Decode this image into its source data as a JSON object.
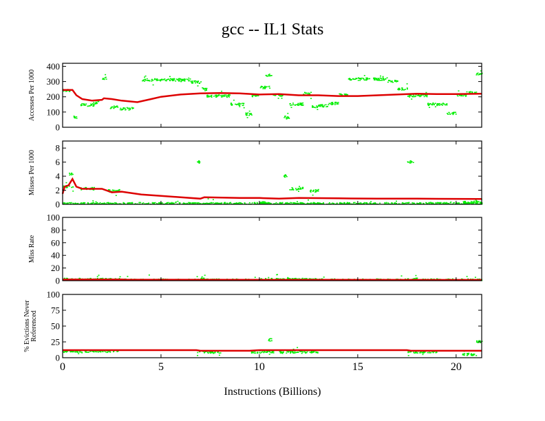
{
  "title": "gcc -- IL1  Stats",
  "colors": {
    "running_avg": "#dd0000",
    "samples": "#00ee00",
    "axis": "#000000"
  },
  "chart_data": [
    {
      "type": "scatter",
      "ylabel": [
        "Accesses Per 1000"
      ],
      "xlim": [
        0,
        21.3
      ],
      "ylim": [
        0,
        420
      ],
      "yticks": [
        0,
        100,
        200,
        300,
        400
      ],
      "series": [
        {
          "name": "running average",
          "kind": "line",
          "points": [
            [
              0,
              245
            ],
            [
              0.5,
              245
            ],
            [
              0.7,
              210
            ],
            [
              1,
              185
            ],
            [
              1.5,
              175
            ],
            [
              2,
              180
            ],
            [
              2.1,
              190
            ],
            [
              2.5,
              185
            ],
            [
              3,
              175
            ],
            [
              3.8,
              165
            ],
            [
              4.5,
              185
            ],
            [
              5,
              200
            ],
            [
              6,
              215
            ],
            [
              7,
              222
            ],
            [
              8,
              225
            ],
            [
              9,
              222
            ],
            [
              10,
              215
            ],
            [
              11,
              218
            ],
            [
              12,
              210
            ],
            [
              13,
              210
            ],
            [
              14,
              205
            ],
            [
              15,
              205
            ],
            [
              16,
              210
            ],
            [
              17,
              215
            ],
            [
              18,
              220
            ],
            [
              19,
              218
            ],
            [
              20,
              218
            ],
            [
              21.3,
              220
            ]
          ]
        },
        {
          "name": "samples",
          "kind": "scatter",
          "clusters": [
            [
              0,
              0.4,
              240
            ],
            [
              0.5,
              0.7,
              65
            ],
            [
              0.9,
              1.6,
              145
            ],
            [
              1.5,
              1.8,
              160
            ],
            [
              2.0,
              2.2,
              320
            ],
            [
              2.4,
              2.8,
              130
            ],
            [
              2.9,
              3.6,
              120
            ],
            [
              4,
              6.5,
              310
            ],
            [
              6.5,
              7,
              295
            ],
            [
              7,
              7.3,
              250
            ],
            [
              7.3,
              8.5,
              205
            ],
            [
              8.5,
              9.2,
              150
            ],
            [
              9.2,
              9.6,
              85
            ],
            [
              9.6,
              10,
              205
            ],
            [
              10,
              10.5,
              260
            ],
            [
              10.3,
              10.6,
              340
            ],
            [
              10.6,
              11.2,
              210
            ],
            [
              11.2,
              11.5,
              65
            ],
            [
              11.5,
              12.2,
              150
            ],
            [
              12.2,
              12.6,
              220
            ],
            [
              12.6,
              13,
              135
            ],
            [
              13,
              13.5,
              140
            ],
            [
              13.5,
              14,
              155
            ],
            [
              14,
              14.5,
              210
            ],
            [
              14.5,
              16.5,
              315
            ],
            [
              16.5,
              17,
              300
            ],
            [
              17,
              17.5,
              250
            ],
            [
              17.5,
              18.5,
              205
            ],
            [
              18.5,
              19.5,
              150
            ],
            [
              19.5,
              20,
              90
            ],
            [
              20,
              20.5,
              210
            ],
            [
              20.5,
              21,
              225
            ],
            [
              21,
              21.3,
              350
            ]
          ]
        }
      ]
    },
    {
      "type": "scatter",
      "ylabel": [
        "Misses Per 1000"
      ],
      "xlim": [
        0,
        21.3
      ],
      "ylim": [
        0,
        9
      ],
      "yticks": [
        0,
        2,
        4,
        6,
        8
      ],
      "series": [
        {
          "name": "running average",
          "kind": "line",
          "points": [
            [
              0,
              1.5
            ],
            [
              0.1,
              2.5
            ],
            [
              0.3,
              2.7
            ],
            [
              0.5,
              3.6
            ],
            [
              0.7,
              2.5
            ],
            [
              1,
              2.2
            ],
            [
              2,
              2.2
            ],
            [
              2.5,
              1.7
            ],
            [
              3,
              1.8
            ],
            [
              4,
              1.4
            ],
            [
              5,
              1.2
            ],
            [
              6,
              1.0
            ],
            [
              7,
              0.8
            ],
            [
              7.2,
              1.0
            ],
            [
              9,
              0.9
            ],
            [
              10,
              0.9
            ],
            [
              11,
              0.8
            ],
            [
              12,
              0.9
            ],
            [
              14,
              0.85
            ],
            [
              16,
              0.8
            ],
            [
              18,
              0.8
            ],
            [
              21.3,
              0.75
            ]
          ]
        },
        {
          "name": "samples",
          "kind": "scatter",
          "clusters": [
            [
              0,
              0.5,
              2.5
            ],
            [
              0.3,
              0.5,
              4.3
            ],
            [
              0.9,
              1.6,
              2.2
            ],
            [
              2.3,
              2.9,
              1.9
            ],
            [
              6.8,
              7,
              6
            ],
            [
              10,
              10.5,
              0.2
            ],
            [
              11.2,
              11.4,
              4
            ],
            [
              11.5,
              12.2,
              2.2
            ],
            [
              12.5,
              13,
              1.9
            ],
            [
              17.5,
              17.8,
              6
            ],
            [
              0,
              21.3,
              0.05
            ],
            [
              20.3,
              21.3,
              0.2
            ]
          ]
        }
      ]
    },
    {
      "type": "scatter",
      "ylabel": [
        "Miss Rate"
      ],
      "xlim": [
        0,
        21.3
      ],
      "ylim": [
        0,
        100
      ],
      "yticks": [
        0,
        20,
        40,
        60,
        80,
        100
      ],
      "series": [
        {
          "name": "running average",
          "kind": "line",
          "points": [
            [
              0,
              2
            ],
            [
              3,
              2
            ],
            [
              3.2,
              1.5
            ],
            [
              21.3,
              1.2
            ]
          ]
        },
        {
          "name": "samples",
          "kind": "scatter",
          "clusters": [
            [
              0,
              3,
              1.5
            ],
            [
              6.8,
              7.2,
              2
            ],
            [
              10,
              13,
              1.5
            ],
            [
              17.5,
              18,
              2
            ],
            [
              0,
              21.3,
              0.5
            ]
          ]
        }
      ]
    },
    {
      "type": "scatter",
      "ylabel": [
        "% Evictions Never",
        "Referenced"
      ],
      "xlim": [
        0,
        21.3
      ],
      "ylim": [
        0,
        100
      ],
      "yticks": [
        0,
        25,
        50,
        75,
        100
      ],
      "xticks": [
        0,
        5,
        10,
        15,
        20
      ],
      "xlabel": "Instructions (Billions)",
      "series": [
        {
          "name": "running average",
          "kind": "line",
          "points": [
            [
              0,
              12
            ],
            [
              6.8,
              12
            ],
            [
              7,
              11
            ],
            [
              9.5,
              11
            ],
            [
              10,
              12
            ],
            [
              17.5,
              12
            ],
            [
              17.7,
              11
            ],
            [
              21.3,
              11
            ]
          ]
        },
        {
          "name": "samples",
          "kind": "scatter",
          "clusters": [
            [
              0,
              2.8,
              10
            ],
            [
              6.8,
              8,
              9
            ],
            [
              9.5,
              10.7,
              9
            ],
            [
              10.4,
              10.6,
              28
            ],
            [
              11,
              13,
              9
            ],
            [
              17.5,
              19,
              9
            ],
            [
              20.3,
              21,
              5
            ],
            [
              21,
              21.3,
              25
            ]
          ]
        }
      ]
    }
  ]
}
